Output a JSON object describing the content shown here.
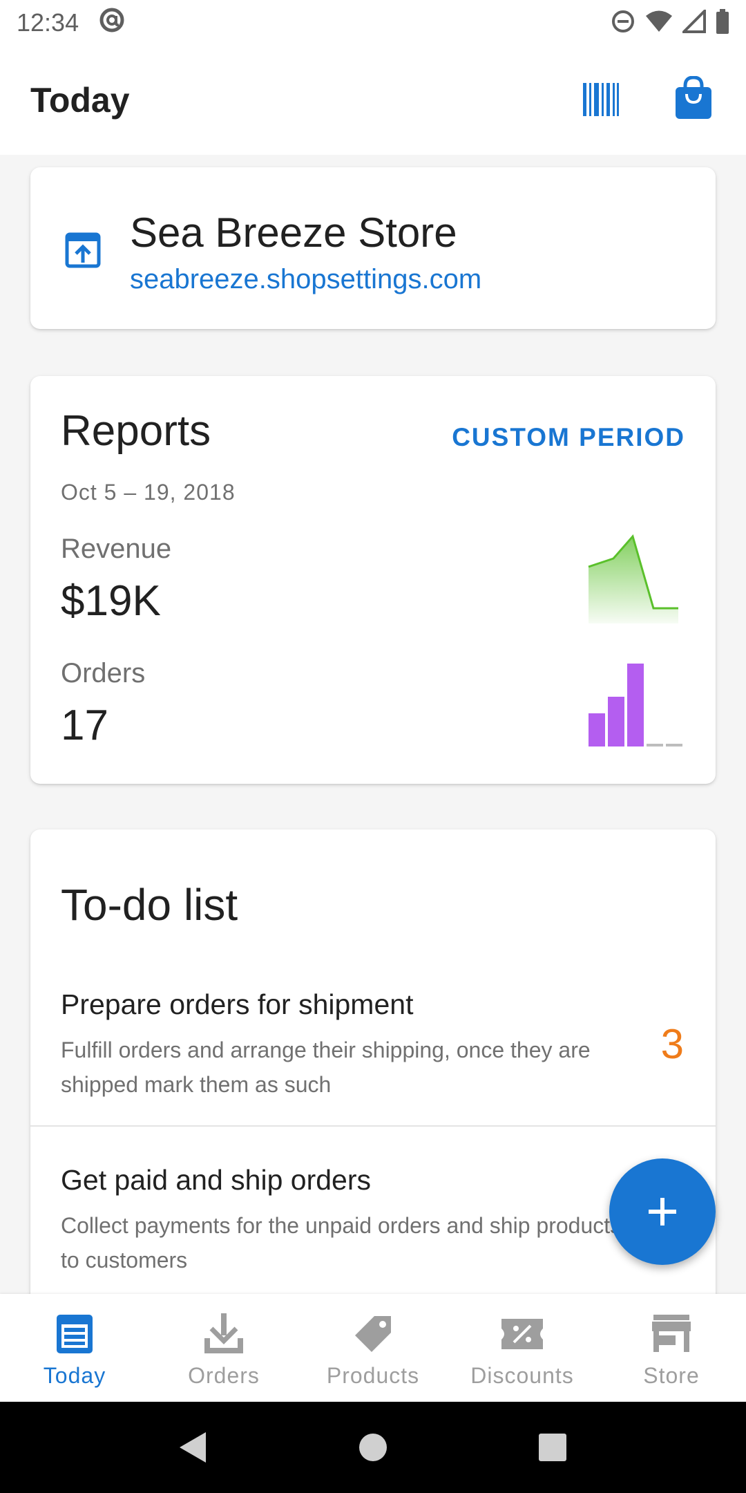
{
  "status_bar": {
    "time": "12:34"
  },
  "app_bar": {
    "title": "Today"
  },
  "store": {
    "name": "Sea Breeze Store",
    "url": "seabreeze.shopsettings.com"
  },
  "reports": {
    "title": "Reports",
    "custom_period_label": "CUSTOM PERIOD",
    "date_range": "Oct 5 – 19, 2018",
    "revenue": {
      "label": "Revenue",
      "value": "$19K"
    },
    "orders": {
      "label": "Orders",
      "value": "17"
    },
    "colors": {
      "revenue_sparkline": "#5ac02b",
      "orders_bars": "#b45ef0"
    }
  },
  "todo": {
    "title": "To-do list",
    "items": [
      {
        "title": "Prepare orders for shipment",
        "description": "Fulfill orders and arrange their shipping, once they are shipped mark them as such",
        "count": "3"
      },
      {
        "title": "Get paid and ship orders",
        "description": "Collect payments for the unpaid orders and ship products to customers"
      }
    ]
  },
  "fab": {
    "icon": "plus-icon"
  },
  "bottom_nav": {
    "items": [
      {
        "label": "Today",
        "icon": "today-icon",
        "active": true
      },
      {
        "label": "Orders",
        "icon": "download-icon"
      },
      {
        "label": "Products",
        "icon": "tag-icon"
      },
      {
        "label": "Discounts",
        "icon": "discount-icon"
      },
      {
        "label": "Store",
        "icon": "store-icon"
      }
    ]
  },
  "colors": {
    "accent": "#1976d2",
    "todo_count": "#ef7c1a"
  }
}
